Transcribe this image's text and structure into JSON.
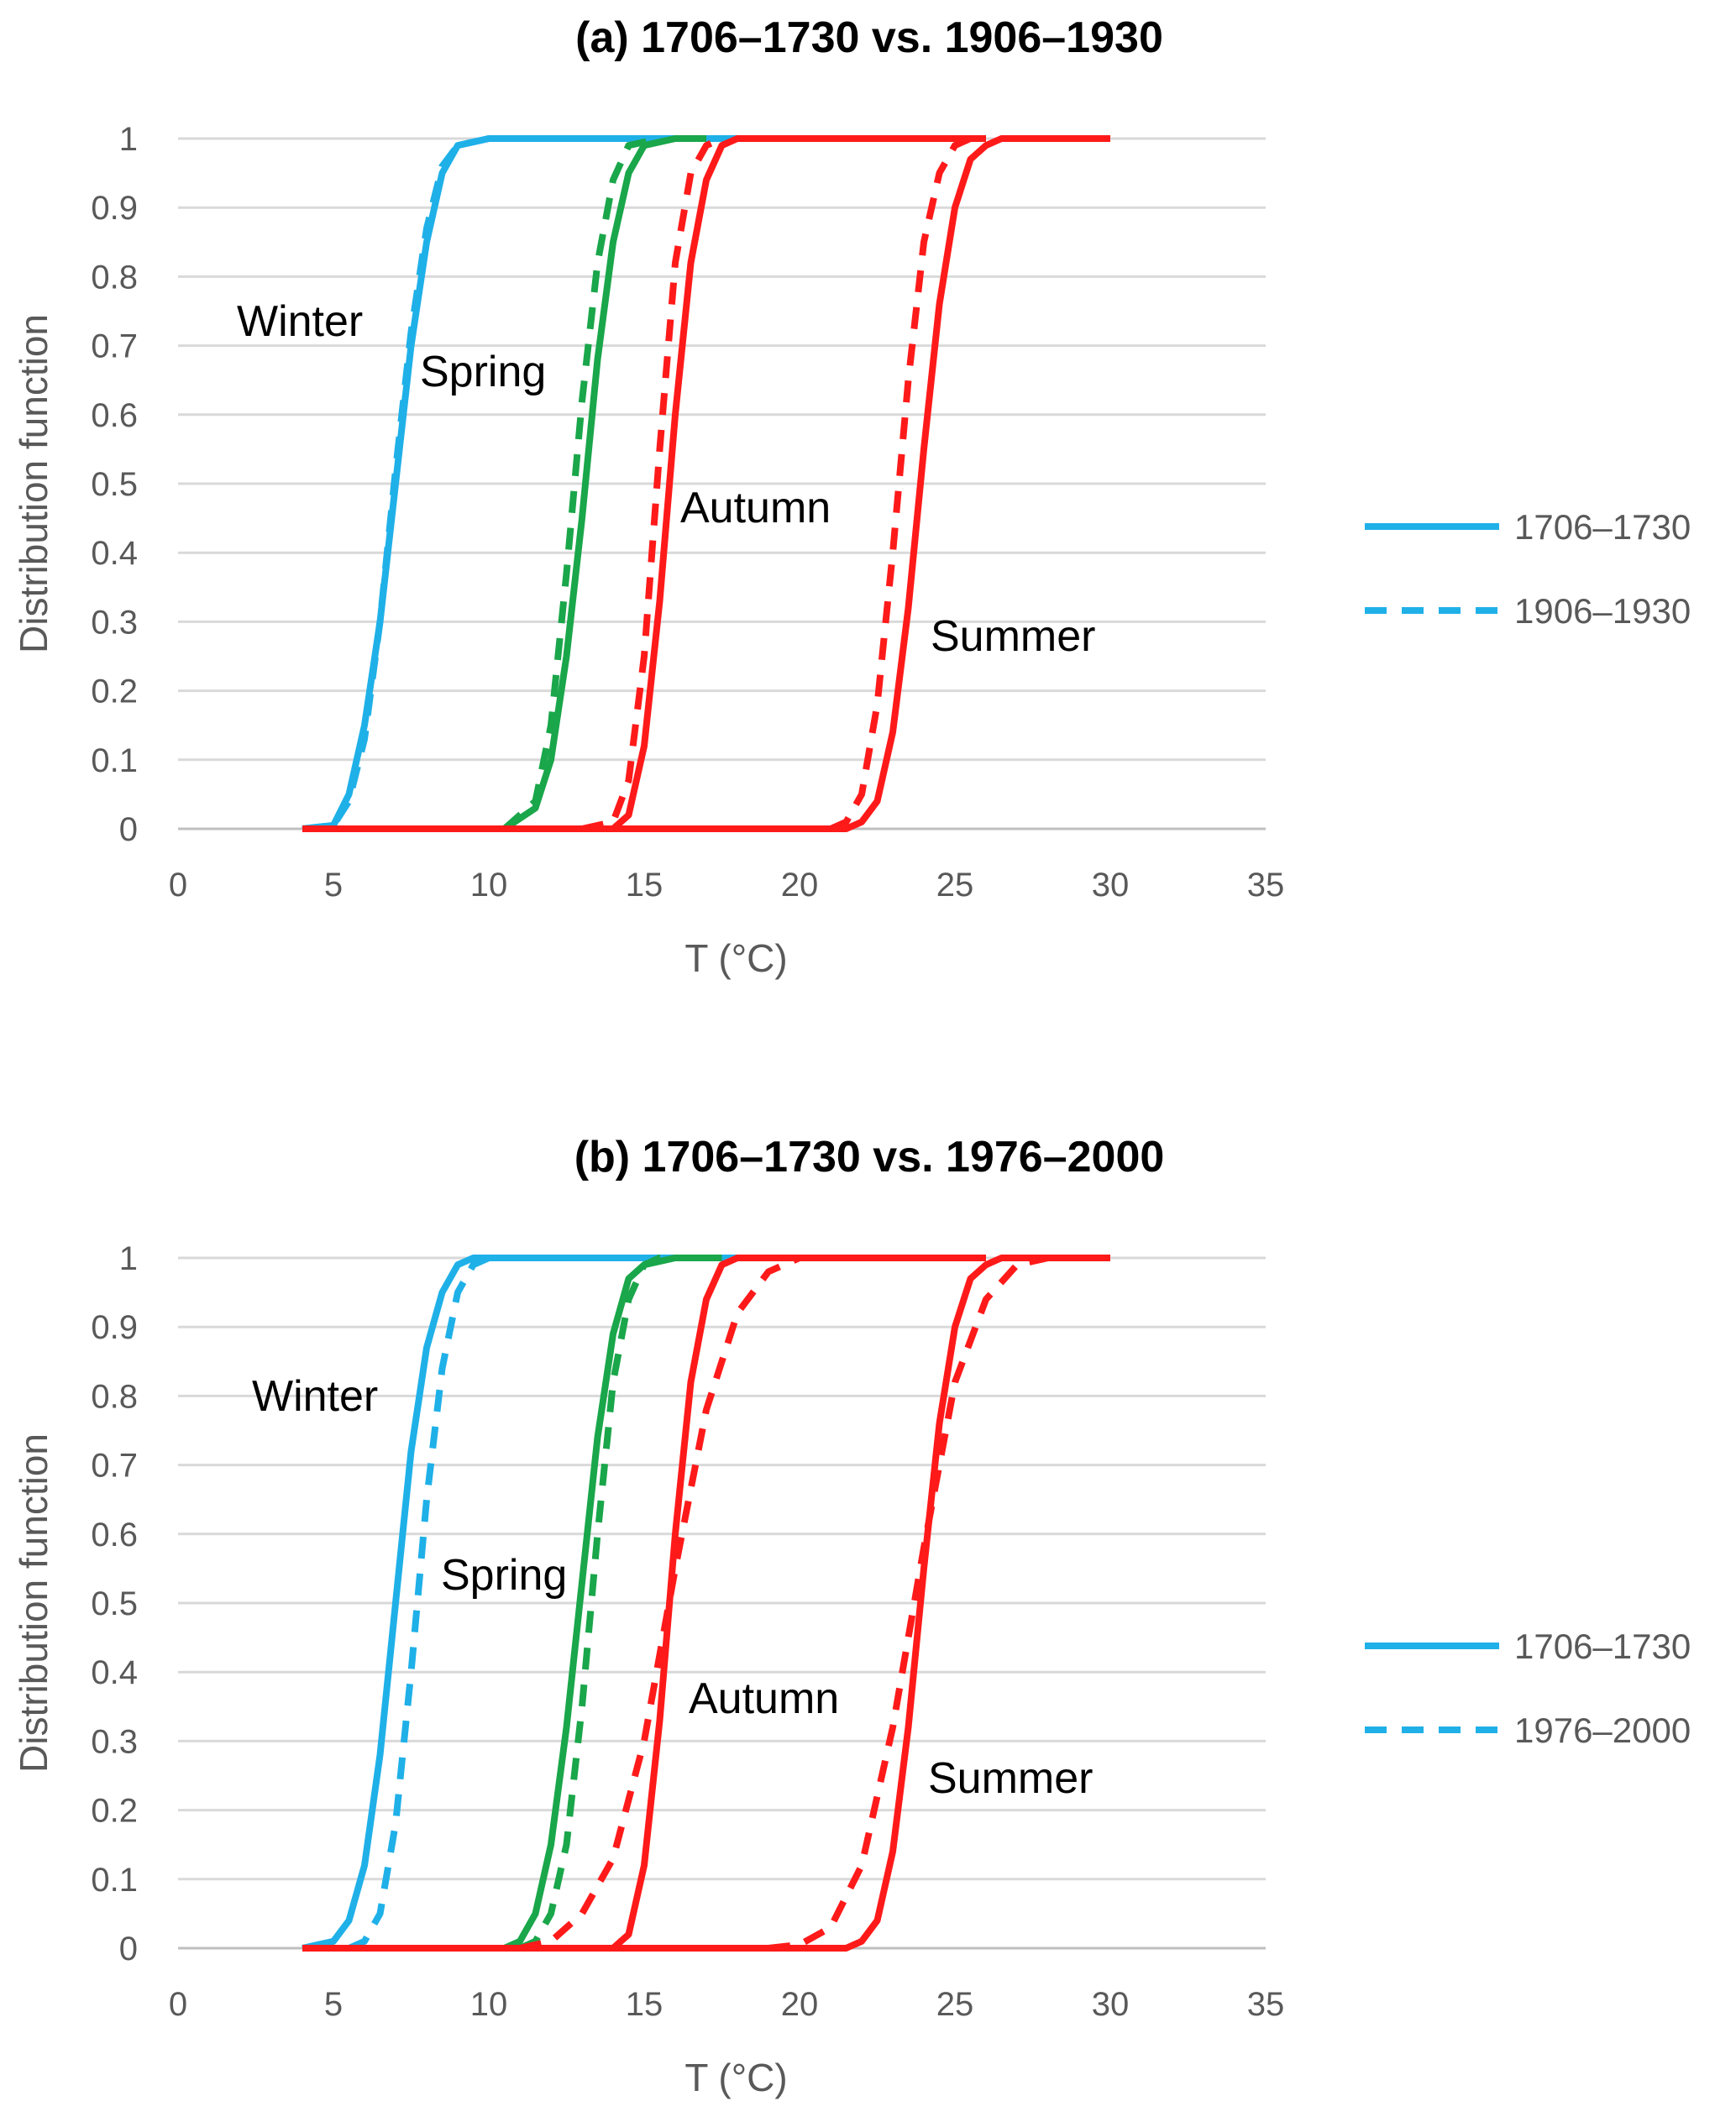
{
  "chart_data": [
    {
      "type": "line",
      "title": "(a) 1706–1730 vs. 1906–1930",
      "xlabel": "T (°C)",
      "ylabel": "Distribution function",
      "xlim": [
        0,
        35
      ],
      "ylim": [
        0,
        1
      ],
      "x_ticks": [
        "0",
        "5",
        "10",
        "15",
        "20",
        "25",
        "30",
        "35"
      ],
      "y_ticks": [
        "0",
        "0.1",
        "0.2",
        "0.3",
        "0.4",
        "0.5",
        "0.6",
        "0.7",
        "0.8",
        "0.9",
        "1"
      ],
      "grid": true,
      "legend_position": "right",
      "legend": [
        {
          "label": "1706–1730",
          "style": "solid"
        },
        {
          "label": "1906–1930",
          "style": "dashed"
        }
      ],
      "annotations": [
        "Winter",
        "Spring",
        "Autumn",
        "Summer"
      ],
      "series": [
        {
          "season": "Winter",
          "period": "1706–1730",
          "style": "solid",
          "color": "#1fb0e8",
          "x": [
            4,
            5,
            5.5,
            6,
            6.5,
            7,
            7.5,
            8,
            8.5,
            9,
            10,
            18
          ],
          "y": [
            0,
            0.005,
            0.05,
            0.15,
            0.3,
            0.5,
            0.7,
            0.85,
            0.95,
            0.99,
            1,
            1
          ]
        },
        {
          "season": "Winter",
          "period": "1906–1930",
          "style": "dashed",
          "color": "#1fb0e8",
          "x": [
            4,
            5,
            5.5,
            6,
            6.5,
            7,
            7.5,
            8,
            8.5,
            9,
            10
          ],
          "y": [
            0,
            0.005,
            0.04,
            0.13,
            0.3,
            0.52,
            0.72,
            0.87,
            0.96,
            0.99,
            1
          ]
        },
        {
          "season": "Spring",
          "period": "1706–1730",
          "style": "solid",
          "color": "#1aa64a",
          "x": [
            4,
            10.5,
            11.5,
            12,
            12.5,
            13,
            13.5,
            14,
            14.5,
            15,
            16,
            17
          ],
          "y": [
            0,
            0,
            0.03,
            0.1,
            0.25,
            0.45,
            0.68,
            0.85,
            0.95,
            0.99,
            1,
            1
          ]
        },
        {
          "season": "Spring",
          "period": "1906–1930",
          "style": "dashed",
          "color": "#1aa64a",
          "x": [
            10.5,
            11.5,
            12,
            12.5,
            13,
            13.5,
            14,
            14.5,
            15.5
          ],
          "y": [
            0,
            0.04,
            0.15,
            0.37,
            0.62,
            0.82,
            0.94,
            0.99,
            1
          ]
        },
        {
          "season": "Autumn",
          "period": "1706–1730",
          "style": "solid",
          "color": "#ff1a1a",
          "x": [
            4,
            14,
            14.5,
            15,
            15.5,
            16,
            16.5,
            17,
            17.5,
            18,
            26
          ],
          "y": [
            0,
            0,
            0.02,
            0.12,
            0.33,
            0.6,
            0.82,
            0.94,
            0.99,
            1,
            1
          ]
        },
        {
          "season": "Autumn",
          "period": "1906–1930",
          "style": "dashed",
          "color": "#ff1a1a",
          "x": [
            13,
            14,
            14.5,
            15,
            15.5,
            16,
            16.5,
            17,
            17.5
          ],
          "y": [
            0,
            0.01,
            0.07,
            0.25,
            0.55,
            0.82,
            0.95,
            0.99,
            1
          ]
        },
        {
          "season": "Summer",
          "period": "1706–1730",
          "style": "solid",
          "color": "#ff1a1a",
          "x": [
            4,
            21.5,
            22,
            22.5,
            23,
            23.5,
            24,
            24.5,
            25,
            25.5,
            26,
            26.5,
            30
          ],
          "y": [
            0,
            0,
            0.01,
            0.04,
            0.14,
            0.32,
            0.55,
            0.76,
            0.9,
            0.97,
            0.99,
            1,
            1
          ]
        },
        {
          "season": "Summer",
          "period": "1906–1930",
          "style": "dashed",
          "color": "#ff1a1a",
          "x": [
            21,
            21.5,
            22,
            22.5,
            23,
            23.5,
            24,
            24.5,
            25,
            25.5,
            26
          ],
          "y": [
            0,
            0.01,
            0.05,
            0.18,
            0.4,
            0.65,
            0.85,
            0.95,
            0.99,
            1,
            1
          ]
        }
      ]
    },
    {
      "type": "line",
      "title": "(b) 1706–1730 vs. 1976–2000",
      "xlabel": "T (°C)",
      "ylabel": "Distribution function",
      "xlim": [
        0,
        35
      ],
      "ylim": [
        0,
        1
      ],
      "x_ticks": [
        "0",
        "5",
        "10",
        "15",
        "20",
        "25",
        "30",
        "35"
      ],
      "y_ticks": [
        "0",
        "0.1",
        "0.2",
        "0.3",
        "0.4",
        "0.5",
        "0.6",
        "0.7",
        "0.8",
        "0.9",
        "1"
      ],
      "grid": true,
      "legend_position": "right",
      "legend": [
        {
          "label": "1706–1730",
          "style": "solid"
        },
        {
          "label": "1976–2000",
          "style": "dashed"
        }
      ],
      "annotations": [
        "Winter",
        "Spring",
        "Autumn",
        "Summer"
      ],
      "series": [
        {
          "season": "Winter",
          "period": "1706–1730",
          "style": "solid",
          "color": "#1fb0e8",
          "x": [
            4,
            5,
            5.5,
            6,
            6.5,
            7,
            7.5,
            8,
            8.5,
            9,
            9.5,
            10,
            18
          ],
          "y": [
            0,
            0.01,
            0.04,
            0.12,
            0.28,
            0.5,
            0.72,
            0.87,
            0.95,
            0.99,
            1,
            1,
            1
          ]
        },
        {
          "season": "Winter",
          "period": "1976–2000",
          "style": "dashed",
          "color": "#1fb0e8",
          "x": [
            5.5,
            6,
            6.5,
            7,
            7.5,
            8,
            8.5,
            9,
            9.5,
            10,
            11
          ],
          "y": [
            0,
            0.01,
            0.05,
            0.18,
            0.4,
            0.65,
            0.84,
            0.95,
            0.99,
            1,
            1
          ]
        },
        {
          "season": "Spring",
          "period": "1706–1730",
          "style": "solid",
          "color": "#1aa64a",
          "x": [
            4,
            10.5,
            11,
            11.5,
            12,
            12.5,
            13,
            13.5,
            14,
            14.5,
            15,
            16,
            17.5
          ],
          "y": [
            0,
            0,
            0.01,
            0.05,
            0.15,
            0.32,
            0.53,
            0.74,
            0.89,
            0.97,
            0.99,
            1,
            1
          ]
        },
        {
          "season": "Spring",
          "period": "1976–2000",
          "style": "dashed",
          "color": "#1aa64a",
          "x": [
            11,
            11.5,
            12,
            12.5,
            13,
            13.5,
            14,
            14.5,
            15,
            15.5,
            16.5
          ],
          "y": [
            0,
            0.01,
            0.05,
            0.15,
            0.35,
            0.6,
            0.82,
            0.94,
            0.99,
            1,
            1
          ]
        },
        {
          "season": "Autumn",
          "period": "1706–1730",
          "style": "solid",
          "color": "#ff1a1a",
          "x": [
            4,
            14,
            14.5,
            15,
            15.5,
            16,
            16.5,
            17,
            17.5,
            18,
            26
          ],
          "y": [
            0,
            0,
            0.02,
            0.12,
            0.33,
            0.6,
            0.82,
            0.94,
            0.99,
            1,
            1
          ]
        },
        {
          "season": "Autumn",
          "period": "1976–2000",
          "style": "dashed",
          "color": "#ff1a1a",
          "x": [
            11,
            12,
            13,
            14,
            15,
            16,
            17,
            18,
            19,
            20,
            21
          ],
          "y": [
            0,
            0.01,
            0.05,
            0.13,
            0.3,
            0.55,
            0.78,
            0.92,
            0.98,
            1,
            1
          ]
        },
        {
          "season": "Summer",
          "period": "1706–1730",
          "style": "solid",
          "color": "#ff1a1a",
          "x": [
            4,
            21.5,
            22,
            22.5,
            23,
            23.5,
            24,
            24.5,
            25,
            25.5,
            26,
            26.5,
            30
          ],
          "y": [
            0,
            0,
            0.01,
            0.04,
            0.14,
            0.32,
            0.55,
            0.76,
            0.9,
            0.97,
            0.99,
            1,
            1
          ]
        },
        {
          "season": "Summer",
          "period": "1976–2000",
          "style": "dashed",
          "color": "#ff1a1a",
          "x": [
            19,
            20,
            21,
            22,
            23,
            24,
            25,
            26,
            27,
            28
          ],
          "y": [
            0,
            0.005,
            0.03,
            0.12,
            0.32,
            0.58,
            0.82,
            0.94,
            0.99,
            1
          ]
        }
      ]
    }
  ]
}
